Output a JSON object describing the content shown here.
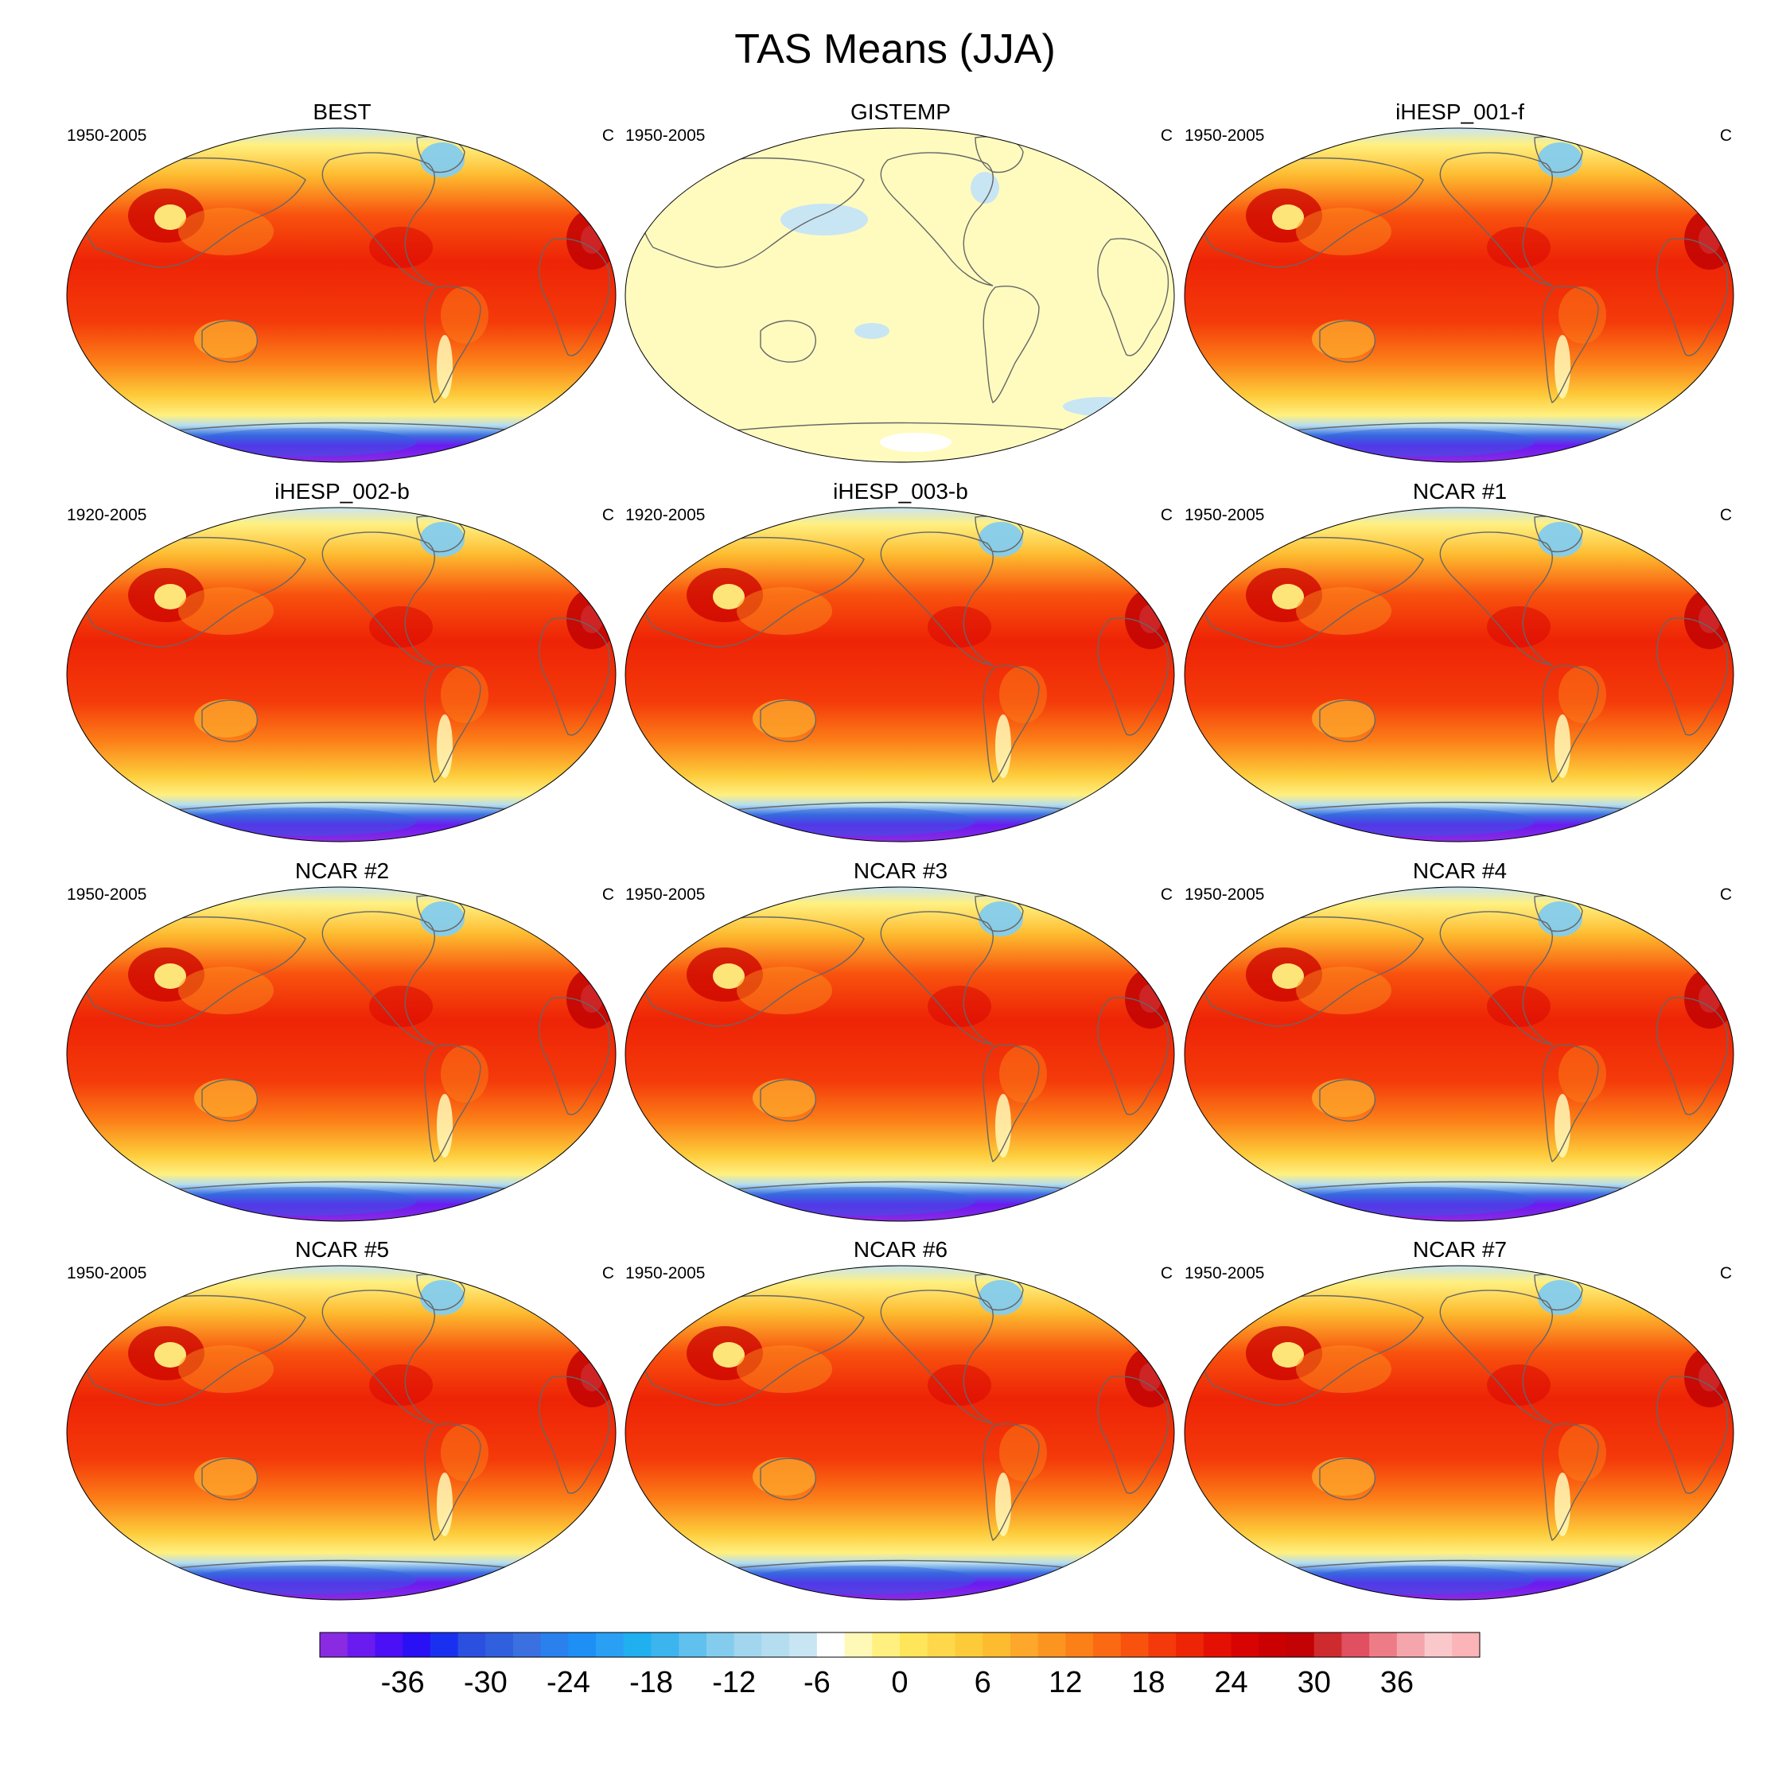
{
  "figure": {
    "title": "TAS Means (JJA)"
  },
  "chart_data": {
    "type": "heatmap",
    "title": "TAS Means (JJA)",
    "projection": "Robinson",
    "panels": [
      {
        "name": "BEST",
        "period": "1950-2005",
        "units": "C",
        "style": "full"
      },
      {
        "name": "GISTEMP",
        "period": "1950-2005",
        "units": "C",
        "style": "pale"
      },
      {
        "name": "iHESP_001-f",
        "period": "1950-2005",
        "units": "C",
        "style": "full"
      },
      {
        "name": "iHESP_002-b",
        "period": "1920-2005",
        "units": "C",
        "style": "full"
      },
      {
        "name": "iHESP_003-b",
        "period": "1920-2005",
        "units": "C",
        "style": "full"
      },
      {
        "name": "NCAR #1",
        "period": "1950-2005",
        "units": "C",
        "style": "full"
      },
      {
        "name": "NCAR #2",
        "period": "1950-2005",
        "units": "C",
        "style": "full"
      },
      {
        "name": "NCAR #3",
        "period": "1950-2005",
        "units": "C",
        "style": "full"
      },
      {
        "name": "NCAR #4",
        "period": "1950-2005",
        "units": "C",
        "style": "full"
      },
      {
        "name": "NCAR #5",
        "period": "1950-2005",
        "units": "C",
        "style": "full"
      },
      {
        "name": "NCAR #6",
        "period": "1950-2005",
        "units": "C",
        "style": "full"
      },
      {
        "name": "NCAR #7",
        "period": "1950-2005",
        "units": "C",
        "style": "full"
      }
    ],
    "colorbar": {
      "min": -42,
      "max": 42,
      "step": 2,
      "tick_labels": [
        "-36",
        "-30",
        "-24",
        "-18",
        "-12",
        "-6",
        "0",
        "6",
        "12",
        "18",
        "24",
        "30",
        "36"
      ],
      "tick_values": [
        -36,
        -30,
        -24,
        -18,
        -12,
        -6,
        0,
        6,
        12,
        18,
        24,
        30,
        36
      ],
      "colors": [
        "#8A2BE2",
        "#6A1BF0",
        "#4B10F5",
        "#2A10F5",
        "#1A30F0",
        "#2B50E0",
        "#3060DD",
        "#3A70E0",
        "#2A80EC",
        "#1E90F5",
        "#2AA0F5",
        "#20B0F0",
        "#3CB4EE",
        "#60C0EE",
        "#84CCEE",
        "#A2D6EE",
        "#B4DDF0",
        "#C8E5F4",
        "#FFFFFF",
        "#FFF9B8",
        "#FFF080",
        "#FFE55A",
        "#FED84A",
        "#FDCB3A",
        "#FDBC30",
        "#FDA82A",
        "#FC9520",
        "#FC8018",
        "#FB6A12",
        "#F8520E",
        "#F43A0A",
        "#EE2406",
        "#E51004",
        "#D80402",
        "#CB0000",
        "#C20204",
        "#CE2B2E",
        "#E05060",
        "#EE7C86",
        "#F5A6AC",
        "#FAC8CA",
        "#FBB4B8"
      ]
    }
  }
}
